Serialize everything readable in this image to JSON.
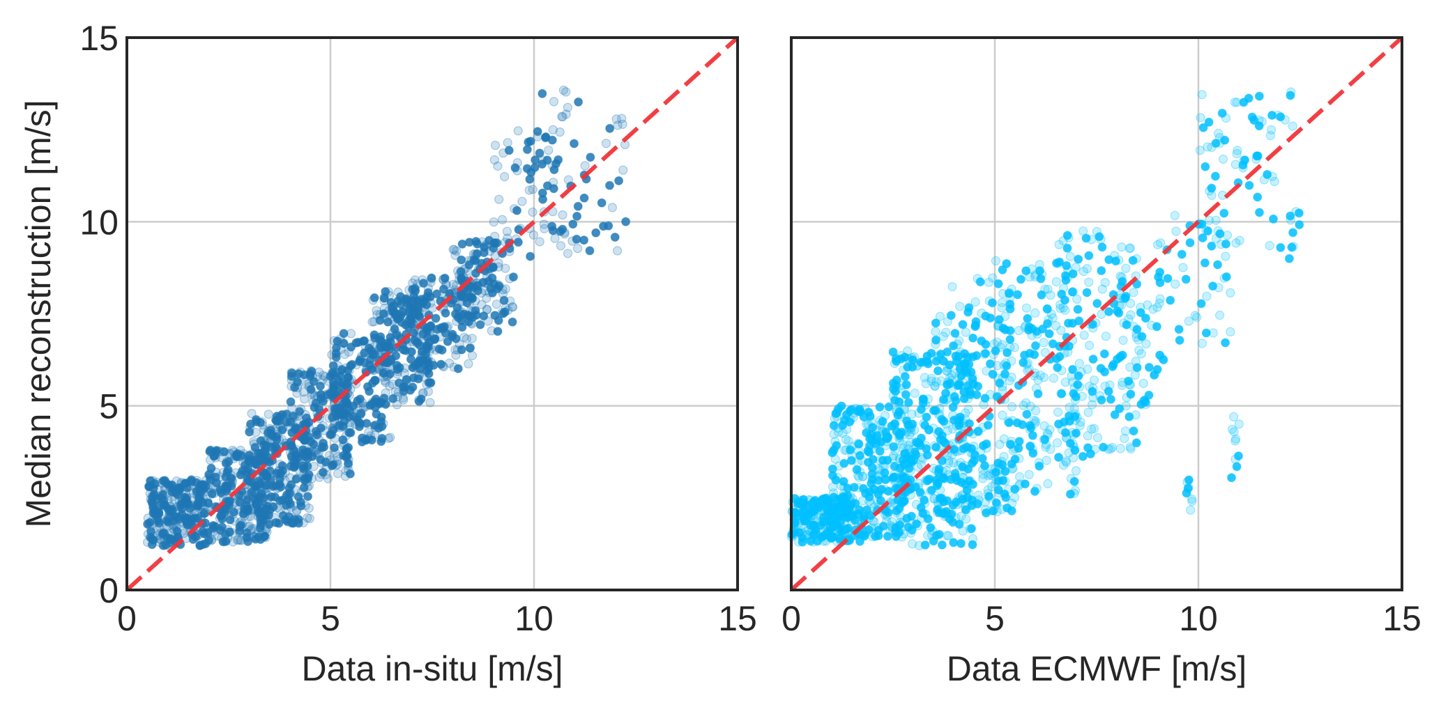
{
  "chart_data": [
    {
      "type": "scatter",
      "panel": "left",
      "xlabel": "Data in-situ [m/s]",
      "ylabel": "Median reconstruction [m/s]",
      "xlim": [
        0,
        15
      ],
      "ylim": [
        0,
        15
      ],
      "xticks": [
        "0",
        "5",
        "10",
        "15"
      ],
      "yticks": [
        "0",
        "5",
        "10",
        "15"
      ],
      "grid": true,
      "color": "#1f77b4",
      "reference_line": {
        "style": "dashed",
        "color": "#f0353a",
        "from": [
          0,
          0
        ],
        "to": [
          15,
          15
        ]
      },
      "clusters": [
        {
          "x": [
            0.5,
            2.0
          ],
          "y": [
            1.2,
            3.0
          ],
          "n": 260
        },
        {
          "x": [
            2.0,
            3.5
          ],
          "y": [
            1.3,
            3.8
          ],
          "n": 260
        },
        {
          "x": [
            3.0,
            4.5
          ],
          "y": [
            1.8,
            4.8
          ],
          "n": 230
        },
        {
          "x": [
            4.0,
            5.5
          ],
          "y": [
            3.0,
            6.0
          ],
          "n": 200
        },
        {
          "x": [
            5.0,
            6.5
          ],
          "y": [
            4.0,
            7.0
          ],
          "n": 180
        },
        {
          "x": [
            6.0,
            7.5
          ],
          "y": [
            5.0,
            8.0
          ],
          "n": 170
        },
        {
          "x": [
            7.0,
            8.5
          ],
          "y": [
            6.0,
            8.5
          ],
          "n": 150
        },
        {
          "x": [
            8.0,
            9.5
          ],
          "y": [
            7.0,
            9.5
          ],
          "n": 90
        },
        {
          "x": [
            9.0,
            10.5
          ],
          "y": [
            9.0,
            12.5
          ],
          "n": 60
        },
        {
          "x": [
            10.2,
            12.3
          ],
          "y": [
            9.0,
            13.6
          ],
          "n": 60
        },
        {
          "x": [
            6.3,
            7.2
          ],
          "y": [
            7.2,
            8.2
          ],
          "n": 40
        },
        {
          "x": [
            8.2,
            9.1
          ],
          "y": [
            8.0,
            9.5
          ],
          "n": 40
        }
      ]
    },
    {
      "type": "scatter",
      "panel": "right",
      "xlabel": "Data ECMWF [m/s]",
      "ylabel": "",
      "xlim": [
        0,
        15
      ],
      "ylim": [
        0,
        15
      ],
      "xticks": [
        "0",
        "5",
        "10",
        "15"
      ],
      "grid": true,
      "color": "#00bfff",
      "reference_line": {
        "style": "dashed",
        "color": "#f0353a",
        "from": [
          0,
          0
        ],
        "to": [
          15,
          15
        ]
      },
      "clusters": [
        {
          "x": [
            0.0,
            1.5
          ],
          "y": [
            1.3,
            2.5
          ],
          "n": 200
        },
        {
          "x": [
            1.0,
            3.0
          ],
          "y": [
            1.3,
            5.0
          ],
          "n": 300
        },
        {
          "x": [
            2.5,
            4.5
          ],
          "y": [
            1.2,
            6.5
          ],
          "n": 300
        },
        {
          "x": [
            3.5,
            5.5
          ],
          "y": [
            2.0,
            8.5
          ],
          "n": 200
        },
        {
          "x": [
            5.0,
            7.0
          ],
          "y": [
            2.5,
            9.0
          ],
          "n": 200
        },
        {
          "x": [
            6.5,
            8.5
          ],
          "y": [
            3.5,
            9.8
          ],
          "n": 150
        },
        {
          "x": [
            8.0,
            9.0
          ],
          "y": [
            5.0,
            8.0
          ],
          "n": 40
        },
        {
          "x": [
            9.0,
            10.8
          ],
          "y": [
            6.2,
            10.2
          ],
          "n": 50
        },
        {
          "x": [
            10.0,
            12.5
          ],
          "y": [
            9.0,
            13.6
          ],
          "n": 80
        },
        {
          "x": [
            9.7,
            9.9
          ],
          "y": [
            2.0,
            3.0
          ],
          "n": 8
        },
        {
          "x": [
            10.8,
            11.0
          ],
          "y": [
            3.0,
            5.0
          ],
          "n": 10
        }
      ]
    }
  ]
}
